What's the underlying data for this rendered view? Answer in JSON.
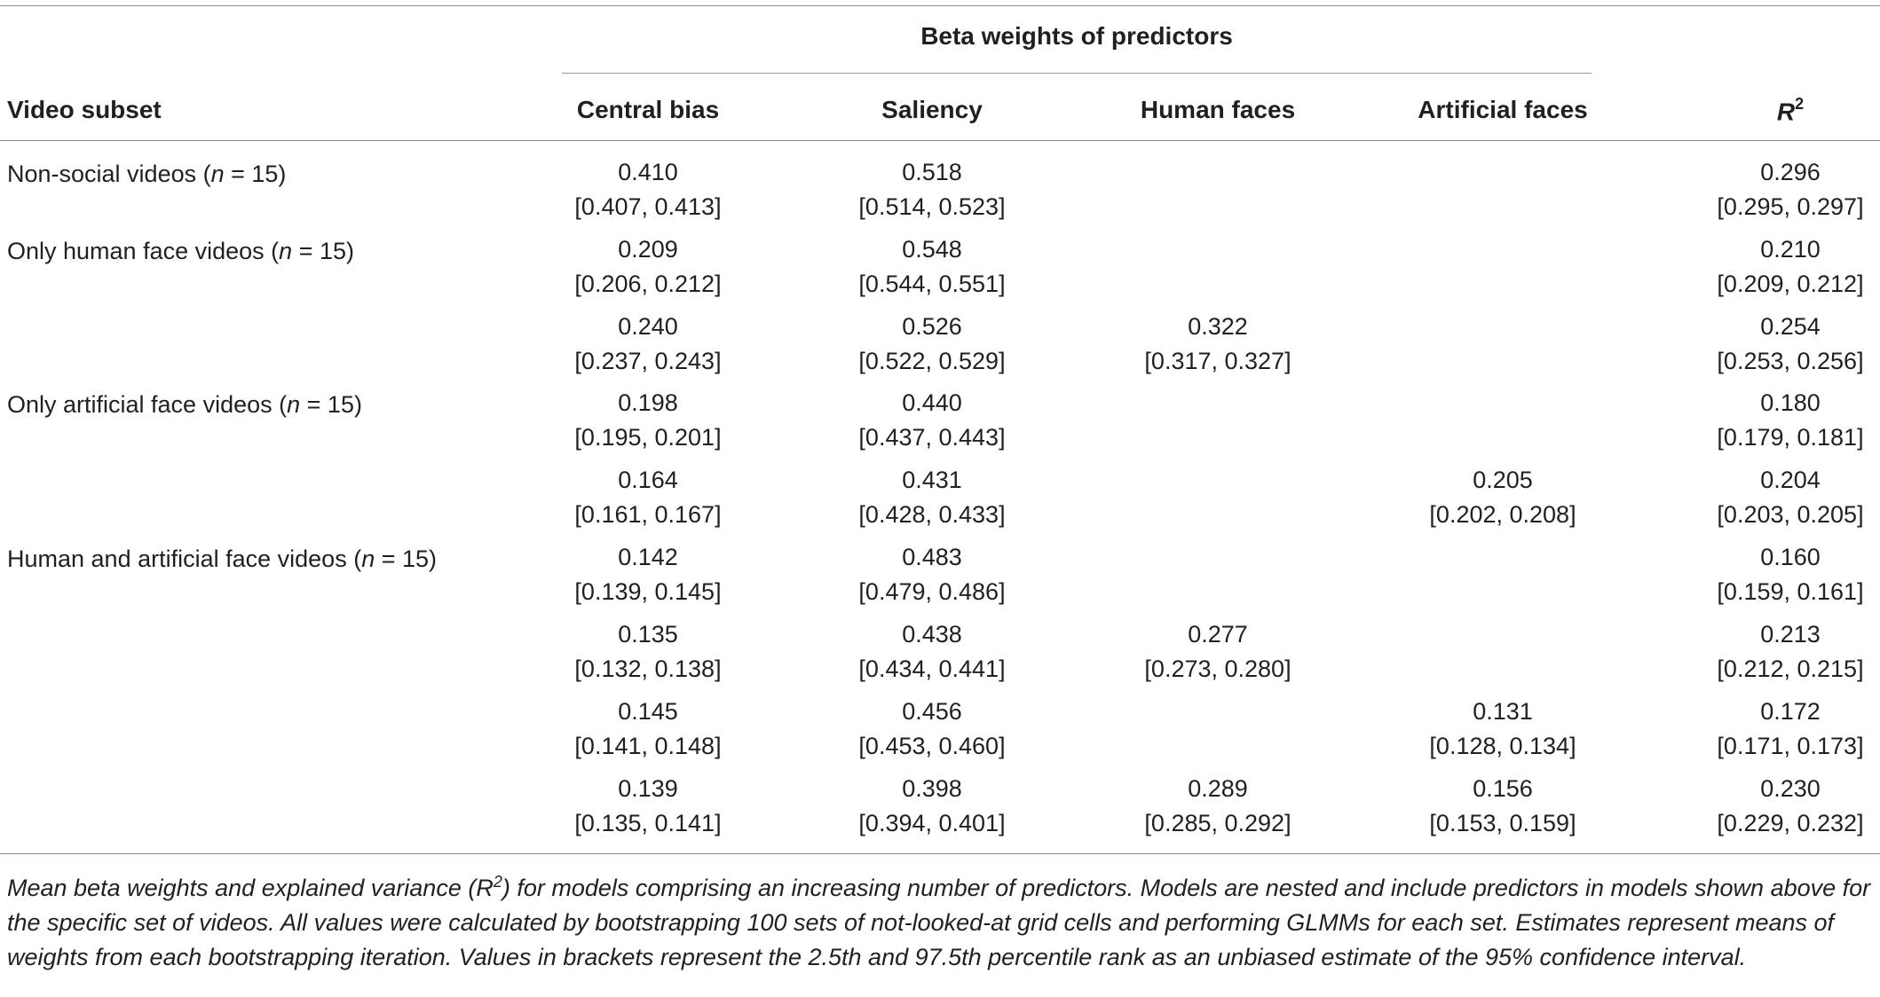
{
  "table": {
    "group_header": "Beta weights of predictors",
    "columns": {
      "subset": "Video subset",
      "central_bias": "Central bias",
      "saliency": "Saliency",
      "human_faces": "Human faces",
      "artificial_faces": "Artificial faces",
      "r2_base": "R",
      "r2_exp": "2"
    },
    "labels": [
      {
        "text": "Non-social videos (",
        "n": "n",
        "rest": " = 15)"
      },
      {
        "text": "Only human face videos (",
        "n": "n",
        "rest": " = 15)"
      },
      {
        "text": "Only artificial face videos (",
        "n": "n",
        "rest": " = 15)"
      },
      {
        "text": "Human and artificial face videos (",
        "n": "n",
        "rest": " = 15)"
      }
    ],
    "rows": [
      {
        "central_bias": {
          "v": "0.410",
          "ci": "[0.407, 0.413]"
        },
        "saliency": {
          "v": "0.518",
          "ci": "[0.514, 0.523]"
        },
        "human_faces": {
          "v": "",
          "ci": ""
        },
        "artificial_faces": {
          "v": "",
          "ci": ""
        },
        "r2": {
          "v": "0.296",
          "ci": "[0.295, 0.297]"
        }
      },
      {
        "central_bias": {
          "v": "0.209",
          "ci": "[0.206, 0.212]"
        },
        "saliency": {
          "v": "0.548",
          "ci": "[0.544, 0.551]"
        },
        "human_faces": {
          "v": "",
          "ci": ""
        },
        "artificial_faces": {
          "v": "",
          "ci": ""
        },
        "r2": {
          "v": "0.210",
          "ci": "[0.209, 0.212]"
        }
      },
      {
        "central_bias": {
          "v": "0.240",
          "ci": "[0.237, 0.243]"
        },
        "saliency": {
          "v": "0.526",
          "ci": "[0.522, 0.529]"
        },
        "human_faces": {
          "v": "0.322",
          "ci": "[0.317, 0.327]"
        },
        "artificial_faces": {
          "v": "",
          "ci": ""
        },
        "r2": {
          "v": "0.254",
          "ci": "[0.253, 0.256]"
        }
      },
      {
        "central_bias": {
          "v": "0.198",
          "ci": "[0.195, 0.201]"
        },
        "saliency": {
          "v": "0.440",
          "ci": "[0.437, 0.443]"
        },
        "human_faces": {
          "v": "",
          "ci": ""
        },
        "artificial_faces": {
          "v": "",
          "ci": ""
        },
        "r2": {
          "v": "0.180",
          "ci": "[0.179, 0.181]"
        }
      },
      {
        "central_bias": {
          "v": "0.164",
          "ci": "[0.161, 0.167]"
        },
        "saliency": {
          "v": "0.431",
          "ci": "[0.428, 0.433]"
        },
        "human_faces": {
          "v": "",
          "ci": ""
        },
        "artificial_faces": {
          "v": "0.205",
          "ci": "[0.202, 0.208]"
        },
        "r2": {
          "v": "0.204",
          "ci": "[0.203, 0.205]"
        }
      },
      {
        "central_bias": {
          "v": "0.142",
          "ci": "[0.139, 0.145]"
        },
        "saliency": {
          "v": "0.483",
          "ci": "[0.479, 0.486]"
        },
        "human_faces": {
          "v": "",
          "ci": ""
        },
        "artificial_faces": {
          "v": "",
          "ci": ""
        },
        "r2": {
          "v": "0.160",
          "ci": "[0.159, 0.161]"
        }
      },
      {
        "central_bias": {
          "v": "0.135",
          "ci": "[0.132, 0.138]"
        },
        "saliency": {
          "v": "0.438",
          "ci": "[0.434, 0.441]"
        },
        "human_faces": {
          "v": "0.277",
          "ci": "[0.273, 0.280]"
        },
        "artificial_faces": {
          "v": "",
          "ci": ""
        },
        "r2": {
          "v": "0.213",
          "ci": "[0.212, 0.215]"
        }
      },
      {
        "central_bias": {
          "v": "0.145",
          "ci": "[0.141, 0.148]"
        },
        "saliency": {
          "v": "0.456",
          "ci": "[0.453, 0.460]"
        },
        "human_faces": {
          "v": "",
          "ci": ""
        },
        "artificial_faces": {
          "v": "0.131",
          "ci": "[0.128, 0.134]"
        },
        "r2": {
          "v": "0.172",
          "ci": "[0.171, 0.173]"
        }
      },
      {
        "central_bias": {
          "v": "0.139",
          "ci": "[0.135, 0.141]"
        },
        "saliency": {
          "v": "0.398",
          "ci": "[0.394, 0.401]"
        },
        "human_faces": {
          "v": "0.289",
          "ci": "[0.285, 0.292]"
        },
        "artificial_faces": {
          "v": "0.156",
          "ci": "[0.153, 0.159]"
        },
        "r2": {
          "v": "0.230",
          "ci": "[0.229, 0.232]"
        }
      }
    ],
    "note": {
      "part1": "Mean beta weights and explained variance (R",
      "sup": "2",
      "part2": ") for models comprising an increasing number of predictors. Models are nested and include predictors in models shown above for the specific set of videos. All values were calculated by bootstrapping 100 sets of not-looked-at grid cells and performing GLMMs for each set. Estimates represent means of weights from each bootstrapping iteration. Values in brackets represent the 2.5th and 97.5th percentile rank as an unbiased estimate of the 95% confidence interval."
    }
  }
}
